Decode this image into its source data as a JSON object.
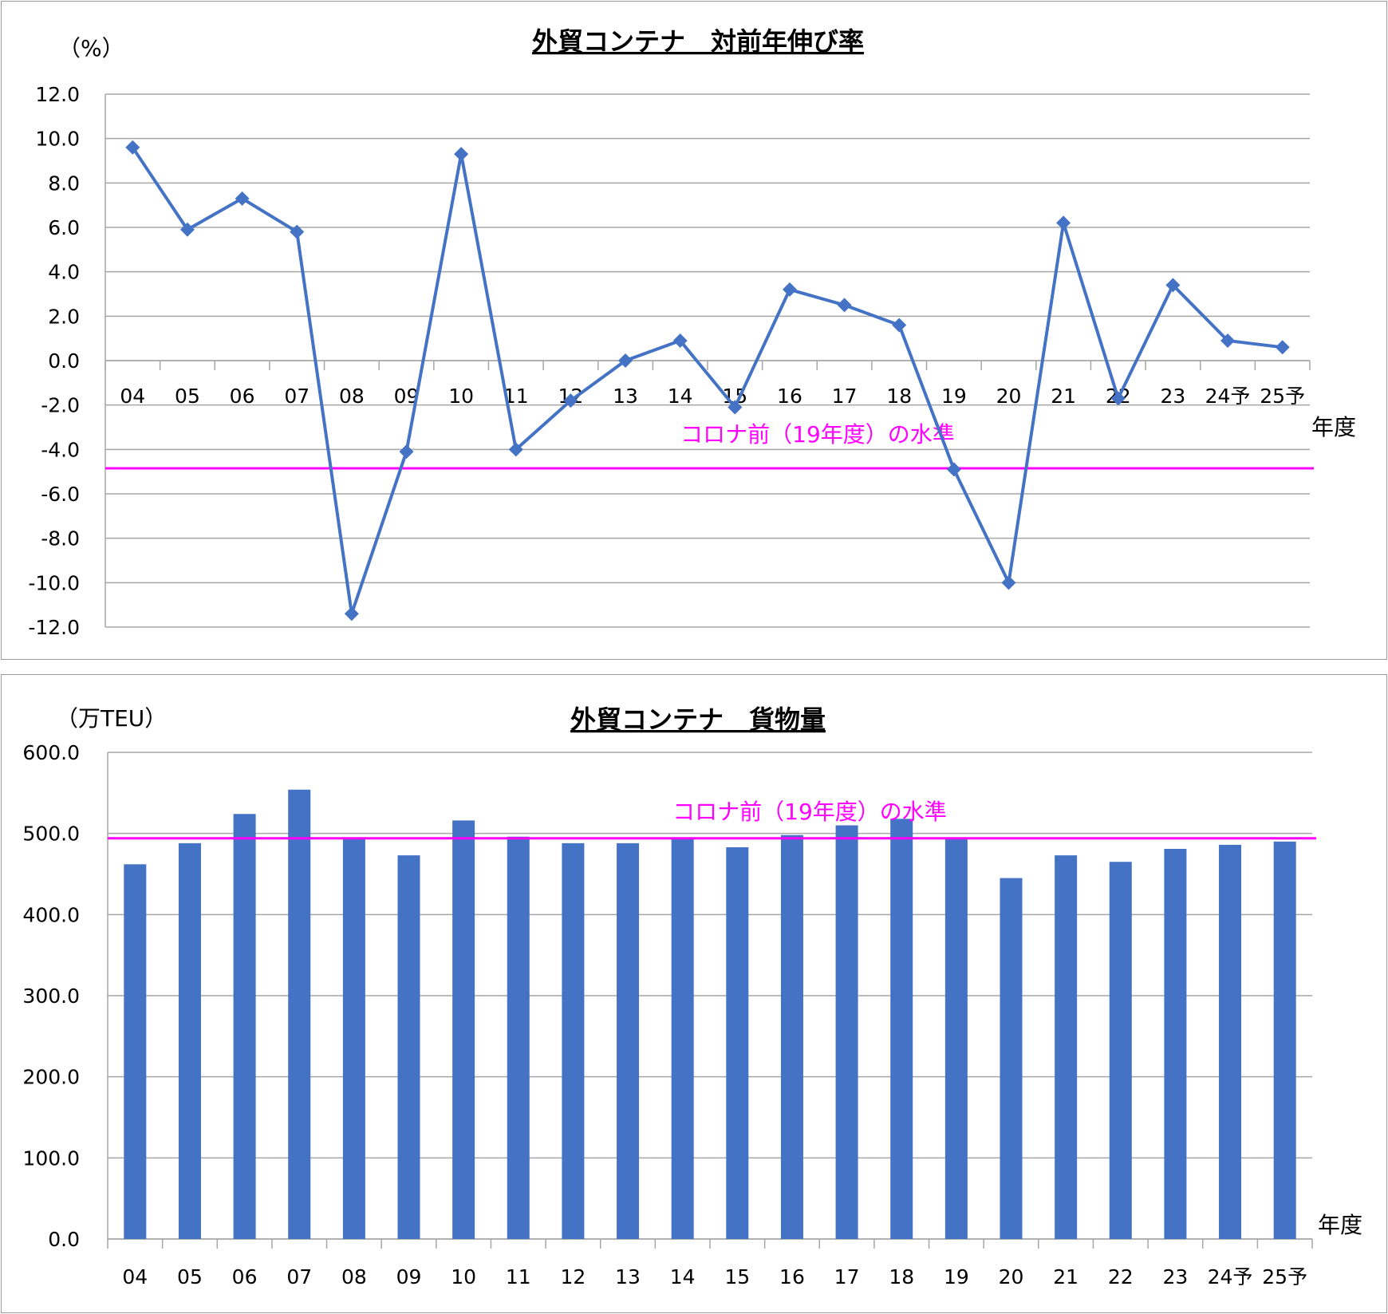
{
  "chart_data": [
    {
      "type": "line",
      "title": "外貿コンテナ　対前年伸び率",
      "ylabel": "（%）",
      "xlabel": "年度",
      "ylim": [
        -12.0,
        12.0
      ],
      "yticks": [
        "12.0",
        "10.0",
        "8.0",
        "6.0",
        "4.0",
        "2.0",
        "0.0",
        "-2.0",
        "-4.0",
        "-6.0",
        "-8.0",
        "-10.0",
        "-12.0"
      ],
      "categories": [
        "04",
        "05",
        "06",
        "07",
        "08",
        "09",
        "10",
        "11",
        "12",
        "13",
        "14",
        "15",
        "16",
        "17",
        "18",
        "19",
        "20",
        "21",
        "22",
        "23",
        "24予",
        "25予"
      ],
      "values": [
        9.6,
        5.9,
        7.3,
        5.8,
        -11.4,
        -4.1,
        9.3,
        -4.0,
        -1.8,
        0.0,
        0.9,
        -2.1,
        3.2,
        2.5,
        1.6,
        -4.9,
        -10.0,
        6.2,
        -1.7,
        3.4,
        0.9,
        0.6
      ],
      "reference_line": {
        "label": "コロナ前（19年度）の水準",
        "value": -4.85
      },
      "line_color": "#4472c4",
      "reference_color": "#ff00ff",
      "grid": true
    },
    {
      "type": "bar",
      "title": "外貿コンテナ　貨物量",
      "ylabel": "（万TEU）",
      "xlabel": "年度",
      "ylim": [
        0.0,
        600.0
      ],
      "yticks": [
        "600.0",
        "500.0",
        "400.0",
        "300.0",
        "200.0",
        "100.0",
        "0.0"
      ],
      "categories": [
        "04",
        "05",
        "06",
        "07",
        "08",
        "09",
        "10",
        "11",
        "12",
        "13",
        "14",
        "15",
        "16",
        "17",
        "18",
        "19",
        "20",
        "21",
        "22",
        "23",
        "24予",
        "25予"
      ],
      "values": [
        462,
        488,
        524,
        554,
        493,
        473,
        516,
        496,
        488,
        488,
        493,
        483,
        498,
        510,
        518,
        494,
        445,
        473,
        465,
        481,
        486,
        490
      ],
      "reference_line": {
        "label": "コロナ前（19年度）の水準",
        "value": 494
      },
      "bar_color": "#4472c4",
      "reference_color": "#ff00ff",
      "grid": true
    }
  ]
}
